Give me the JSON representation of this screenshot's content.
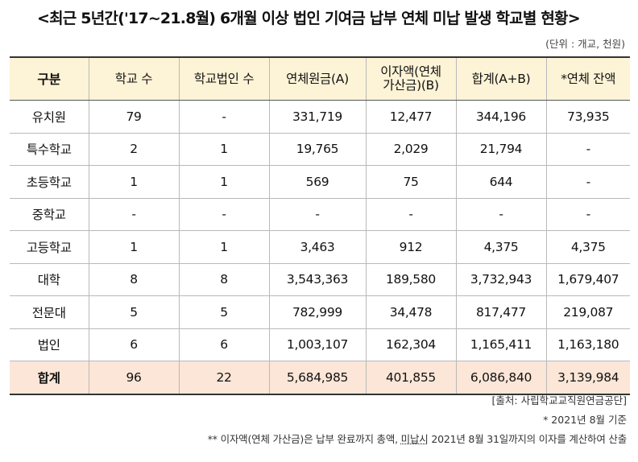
{
  "title": "<최근 5년간('17~21.8월) 6개월 이상 법인 기여금 납부 연체 미납 발생 학교별 현황>",
  "unit": "(단위 : 개교, 천원)",
  "table": {
    "headers": [
      {
        "lines": [
          "구분"
        ]
      },
      {
        "lines": [
          "학교 수"
        ]
      },
      {
        "lines": [
          "학교법인 수"
        ]
      },
      {
        "lines": [
          "연체원금(A)"
        ]
      },
      {
        "lines": [
          "이자액(연체",
          "가산금)(B)"
        ]
      },
      {
        "lines": [
          "합계(A+B)"
        ]
      },
      {
        "lines": [
          "*연체 잔액"
        ]
      }
    ],
    "rows": [
      [
        "유치원",
        "79",
        "-",
        "331,719",
        "12,477",
        "344,196",
        "73,935"
      ],
      [
        "특수학교",
        "2",
        "1",
        "19,765",
        "2,029",
        "21,794",
        "-"
      ],
      [
        "초등학교",
        "1",
        "1",
        "569",
        "75",
        "644",
        "-"
      ],
      [
        "중학교",
        "-",
        "-",
        "-",
        "-",
        "-",
        "-"
      ],
      [
        "고등학교",
        "1",
        "1",
        "3,463",
        "912",
        "4,375",
        "4,375"
      ],
      [
        "대학",
        "8",
        "8",
        "3,543,363",
        "189,580",
        "3,732,943",
        "1,679,407"
      ],
      [
        "전문대",
        "5",
        "5",
        "782,999",
        "34,478",
        "817,477",
        "219,087"
      ],
      [
        "법인",
        "6",
        "6",
        "1,003,107",
        "162,304",
        "1,165,411",
        "1,163,180"
      ]
    ],
    "total": [
      "합계",
      "96",
      "22",
      "5,684,985",
      "401,855",
      "6,086,840",
      "3,139,984"
    ]
  },
  "notes": {
    "source": "[출처: 사립학교교직원연금공단]",
    "basis": "* 2021년 8월 기준",
    "interest_pre": "** 이자액(연체 가산금)은 납부 완료까지 총액, ",
    "interest_mid": "미납시",
    "interest_post": " 2021년 8월 31일까지의 이자를 계산하여 산출"
  }
}
